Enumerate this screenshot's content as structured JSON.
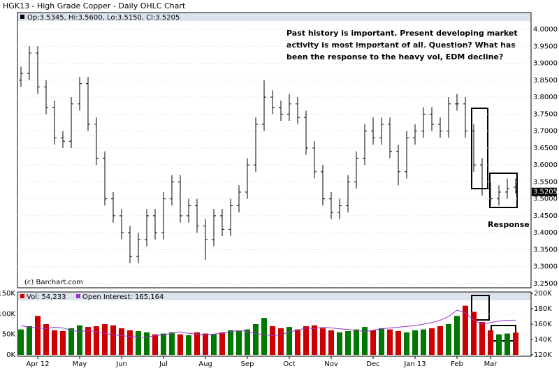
{
  "chart_data": [
    {
      "type": "ohlc",
      "title": "HGK13 - High Grade Copper - Daily OHLC Chart",
      "legend": "Op:3.5345, Hi:3.5600, Lo:3.5150, Cl:3.5205",
      "last_price_label": "3.5205",
      "annotation": [
        "Past history is important.  Present developing market",
        "activity is most important of all.  Question?  What has",
        "been the response to the heavy vol, EDM decline?"
      ],
      "box_label": "Response",
      "source": "(c) Barchart.com",
      "color": "#000000",
      "open": [
        3.85,
        3.87,
        3.93,
        3.83,
        3.77,
        3.68,
        3.67,
        3.78,
        3.84,
        3.72,
        3.62,
        3.5,
        3.45,
        3.4,
        3.33,
        3.38,
        3.45,
        3.4,
        3.5,
        3.55,
        3.45,
        3.48,
        3.42,
        3.38,
        3.45,
        3.41,
        3.48,
        3.52,
        3.6,
        3.72,
        3.8,
        3.77,
        3.75,
        3.78,
        3.74,
        3.65,
        3.58,
        3.5,
        3.46,
        3.48,
        3.55,
        3.62,
        3.7,
        3.68,
        3.72,
        3.64,
        3.58,
        3.68,
        3.7,
        3.75,
        3.72,
        3.7,
        3.78,
        3.78,
        3.7,
        3.6,
        3.53,
        3.5,
        3.52,
        3.5345
      ],
      "high": [
        3.89,
        3.95,
        3.95,
        3.85,
        3.79,
        3.7,
        3.8,
        3.86,
        3.86,
        3.74,
        3.64,
        3.52,
        3.47,
        3.42,
        3.4,
        3.47,
        3.47,
        3.52,
        3.57,
        3.57,
        3.5,
        3.5,
        3.44,
        3.47,
        3.47,
        3.5,
        3.54,
        3.62,
        3.74,
        3.85,
        3.82,
        3.79,
        3.81,
        3.8,
        3.76,
        3.67,
        3.6,
        3.52,
        3.5,
        3.57,
        3.64,
        3.72,
        3.74,
        3.74,
        3.74,
        3.66,
        3.7,
        3.72,
        3.77,
        3.77,
        3.74,
        3.8,
        3.81,
        3.8,
        3.72,
        3.62,
        3.55,
        3.54,
        3.56,
        3.56
      ],
      "low": [
        3.83,
        3.85,
        3.81,
        3.75,
        3.66,
        3.65,
        3.65,
        3.76,
        3.7,
        3.6,
        3.48,
        3.43,
        3.38,
        3.31,
        3.31,
        3.36,
        3.38,
        3.38,
        3.48,
        3.43,
        3.43,
        3.4,
        3.32,
        3.36,
        3.39,
        3.39,
        3.46,
        3.5,
        3.58,
        3.7,
        3.75,
        3.73,
        3.73,
        3.72,
        3.63,
        3.56,
        3.48,
        3.44,
        3.44,
        3.46,
        3.53,
        3.6,
        3.66,
        3.66,
        3.62,
        3.54,
        3.56,
        3.66,
        3.68,
        3.7,
        3.68,
        3.68,
        3.76,
        3.68,
        3.58,
        3.51,
        3.48,
        3.48,
        3.5,
        3.515
      ],
      "close": [
        3.87,
        3.93,
        3.83,
        3.77,
        3.68,
        3.67,
        3.78,
        3.84,
        3.72,
        3.62,
        3.5,
        3.45,
        3.4,
        3.33,
        3.38,
        3.45,
        3.4,
        3.5,
        3.55,
        3.45,
        3.48,
        3.42,
        3.38,
        3.45,
        3.41,
        3.48,
        3.52,
        3.6,
        3.72,
        3.8,
        3.77,
        3.75,
        3.78,
        3.74,
        3.65,
        3.58,
        3.5,
        3.46,
        3.48,
        3.55,
        3.62,
        3.7,
        3.68,
        3.72,
        3.64,
        3.58,
        3.68,
        3.7,
        3.75,
        3.72,
        3.7,
        3.78,
        3.78,
        3.7,
        3.6,
        3.53,
        3.5,
        3.52,
        3.53,
        3.5205
      ],
      "ylim": [
        3.25,
        4.0
      ],
      "yticks": [
        {
          "value": 3.25,
          "label": "3.2500"
        },
        {
          "value": 3.3,
          "label": "3.3000"
        },
        {
          "value": 3.35,
          "label": "3.3500"
        },
        {
          "value": 3.4,
          "label": "3.4000"
        },
        {
          "value": 3.45,
          "label": "3.4500"
        },
        {
          "value": 3.5,
          "label": "3.5000"
        },
        {
          "value": 3.55,
          "label": "3.5500"
        },
        {
          "value": 3.6,
          "label": "3.6000"
        },
        {
          "value": 3.65,
          "label": "3.6500"
        },
        {
          "value": 3.7,
          "label": "3.7000"
        },
        {
          "value": 3.75,
          "label": "3.7500"
        },
        {
          "value": 3.8,
          "label": "3.8000"
        },
        {
          "value": 3.85,
          "label": "3.8500"
        },
        {
          "value": 3.9,
          "label": "3.9000"
        },
        {
          "value": 3.95,
          "label": "3.9500"
        },
        {
          "value": 4.0,
          "label": "4.0000"
        }
      ],
      "grid": true
    },
    {
      "type": "bar",
      "categories": [
        null,
        null,
        "Apr 12",
        null,
        null,
        null,
        null,
        "May",
        null,
        null,
        null,
        null,
        "Jun",
        null,
        null,
        null,
        null,
        "Jul",
        null,
        null,
        null,
        null,
        "Aug",
        null,
        null,
        null,
        null,
        "Sep",
        null,
        null,
        null,
        null,
        "Oct",
        null,
        null,
        null,
        null,
        "Nov",
        null,
        null,
        null,
        null,
        "Dec",
        null,
        null,
        null,
        null,
        "Jan 13",
        null,
        null,
        null,
        null,
        "Feb",
        null,
        null,
        null,
        "Mar",
        null,
        null,
        null
      ],
      "up_color": "#007700",
      "series": [
        {
          "name": "Vol: 54,233",
          "color": "#cc0000",
          "values": [
            62000,
            70000,
            95000,
            75000,
            60000,
            58000,
            65000,
            72000,
            68000,
            70000,
            75000,
            72000,
            65000,
            60000,
            58000,
            55000,
            50000,
            52000,
            55000,
            50000,
            48000,
            55000,
            52000,
            50000,
            55000,
            60000,
            58000,
            62000,
            75000,
            90000,
            70000,
            65000,
            68000,
            62000,
            70000,
            72000,
            65000,
            60000,
            55000,
            58000,
            62000,
            68000,
            60000,
            65000,
            62000,
            58000,
            55000,
            60000,
            62000,
            65000,
            70000,
            75000,
            95000,
            120000,
            105000,
            80000,
            60000,
            50000,
            52000,
            54233
          ]
        },
        {
          "name": "Open Interest: 165,164",
          "color": "#9933cc",
          "axis": "y2",
          "values": [
            158000,
            156000,
            155000,
            154000,
            156000,
            155000,
            152000,
            150000,
            152000,
            150000,
            148000,
            146000,
            145000,
            144000,
            143000,
            143000,
            145000,
            146000,
            148000,
            150000,
            148000,
            147000,
            146000,
            147000,
            148000,
            150000,
            152000,
            150000,
            148000,
            146000,
            145000,
            146000,
            150000,
            152000,
            155000,
            154000,
            156000,
            155000,
            154000,
            153000,
            152000,
            150000,
            152000,
            154000,
            155000,
            156000,
            157000,
            158000,
            160000,
            162000,
            165000,
            170000,
            178000,
            175000,
            165000,
            160000,
            162000,
            164000,
            165000,
            165164
          ]
        }
      ],
      "ylim": [
        0,
        150000
      ],
      "yticks": [
        {
          "value": 0,
          "label": "0K"
        },
        {
          "value": 50000,
          "label": "50K"
        },
        {
          "value": 100000,
          "label": "100K"
        },
        {
          "value": 150000,
          "label": "150K"
        }
      ],
      "y2lim": [
        120000,
        200000
      ],
      "y2ticks": [
        {
          "value": 120000,
          "label": "120K"
        },
        {
          "value": 140000,
          "label": "140K"
        },
        {
          "value": 160000,
          "label": "160K"
        },
        {
          "value": 180000,
          "label": "180K"
        },
        {
          "value": 200000,
          "label": "200K"
        }
      ],
      "grid": true
    }
  ]
}
